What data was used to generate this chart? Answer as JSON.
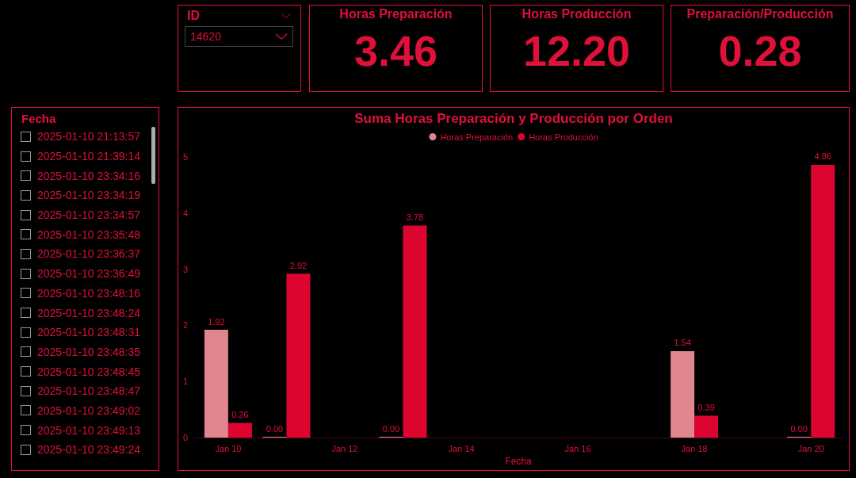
{
  "chart_data": [
    {
      "type": "other",
      "title": "ID",
      "annotations": [
        "14620"
      ]
    },
    {
      "type": "other",
      "title": "Horas Preparación",
      "annotations": [
        "3.46"
      ]
    },
    {
      "type": "other",
      "title": "Horas Producción",
      "annotations": [
        "12.20"
      ]
    },
    {
      "type": "other",
      "title": "Preparación/Producción",
      "annotations": [
        "0.28"
      ]
    },
    {
      "type": "other",
      "title": "Fecha",
      "annotations": [
        "2025-01-10 21:13:57",
        "2025-01-10 21:39:14",
        "2025-01-10 23:34:16",
        "2025-01-10 23:34:19",
        "2025-01-10 23:34:57",
        "2025-01-10 23:35:48",
        "2025-01-10 23:36:37",
        "2025-01-10 23:36:49",
        "2025-01-10 23:48:16",
        "2025-01-10 23:48:24",
        "2025-01-10 23:48:31",
        "2025-01-10 23:48:35",
        "2025-01-10 23:48:45",
        "2025-01-10 23:48:47",
        "2025-01-10 23:49:02",
        "2025-01-10 23:49:13",
        "2025-01-10 23:49:24"
      ]
    },
    {
      "type": "bar",
      "title": "Suma Horas Preparación y Producción por Orden",
      "xlabel": "Fecha",
      "legend": "top",
      "x": [
        "2025-01-10",
        "2025-01-11",
        "2025-01-13",
        "2025-01-18",
        "2025-01-20"
      ],
      "series": [
        {
          "name": "Horas Preparación",
          "color": "#e0868e",
          "values": [
            1.92,
            0,
            0,
            1.54,
            0
          ],
          "value_labels": [
            "1.92",
            "0.00",
            "0.00",
            "1.54",
            "0.00"
          ]
        },
        {
          "name": "Horas Producción",
          "color": "#dc0530",
          "values": [
            0.26,
            2.92,
            3.78,
            0.39,
            4.86
          ],
          "value_labels": [
            "0.26",
            "2.92",
            "3.78",
            "0.39",
            "4.86"
          ]
        }
      ],
      "xlim": [
        "2025-01-09T10:00",
        "2025-01-20T13:00"
      ],
      "xticks": [
        {
          "value": "2025-01-10",
          "label": "Jan 10"
        },
        {
          "value": "2025-01-12",
          "label": "Jan 12"
        },
        {
          "value": "2025-01-14",
          "label": "Jan 14"
        },
        {
          "value": "2025-01-16",
          "label": "Jan 16"
        },
        {
          "value": "2025-01-18",
          "label": "Jan 18"
        },
        {
          "value": "2025-01-20",
          "label": "Jan 20"
        }
      ],
      "ylim": [
        0,
        5
      ],
      "yticks": [
        0,
        1,
        2,
        3,
        4,
        5
      ],
      "grid": false
    }
  ]
}
